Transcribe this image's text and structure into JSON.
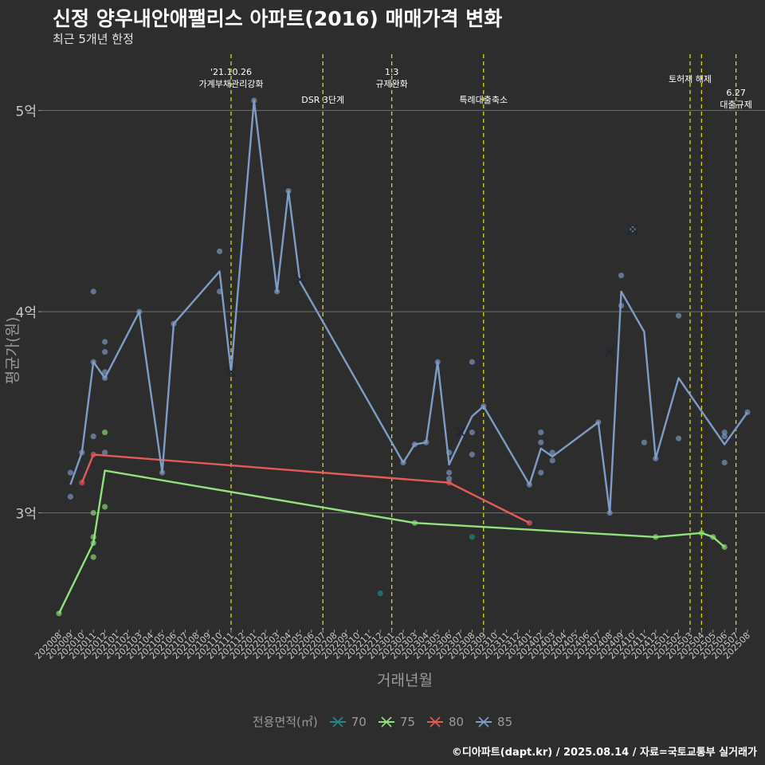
{
  "title": "신정 양우내안애팰리스 아파트(2016) 매매가격 변화",
  "subtitle": "최근 5개년 한정",
  "caption": "©디아파트(dapt.kr) / 2025.08.14 / 자료=국토교통부 실거래가",
  "legend": {
    "title": "전용면적(㎡)",
    "items": [
      {
        "label": "70",
        "color": "#1f8c8c"
      },
      {
        "label": "75",
        "color": "#90e27a"
      },
      {
        "label": "80",
        "color": "#e65a58"
      },
      {
        "label": "85",
        "color": "#7f9cc6"
      }
    ]
  },
  "chart_data": {
    "type": "line",
    "title": "신정 양우내안애팰리스 아파트(2016) 매매가격 변화",
    "subtitle": "최근 5개년 한정",
    "xlabel": "거래년월",
    "ylabel": "평균가(원)",
    "x_ticks": [
      "202008",
      "202009",
      "202010",
      "202011",
      "202012",
      "202101",
      "202102",
      "202103",
      "202104",
      "202105",
      "202106",
      "202107",
      "202108",
      "202109",
      "202110",
      "202111",
      "202112",
      "202201",
      "202202",
      "202203",
      "202204",
      "202205",
      "202206",
      "202207",
      "202208",
      "202209",
      "202210",
      "202211",
      "202212",
      "202301",
      "202302",
      "202303",
      "202304",
      "202305",
      "202306",
      "202307",
      "202308",
      "202309",
      "202310",
      "202311",
      "202312",
      "202401",
      "202402",
      "202403",
      "202404",
      "202405",
      "202406",
      "202407",
      "202408",
      "202409",
      "202410",
      "202411",
      "202412",
      "202501",
      "202502",
      "202503",
      "202504",
      "202505",
      "202506",
      "202507",
      "202508"
    ],
    "y_ticks": [
      {
        "value": 3.0,
        "label": "3억"
      },
      {
        "value": 4.0,
        "label": "4억"
      },
      {
        "value": 5.0,
        "label": "5억"
      }
    ],
    "ylim": [
      2.42,
      5.28
    ],
    "y_unit": "억",
    "grid": "horizontal",
    "legend_position": "bottom",
    "events": [
      {
        "x": "202111",
        "label": "'21.10.26\n가계부채관리강화",
        "label_row": 0
      },
      {
        "x": "202207",
        "label": "DSR 3단계",
        "label_row": 1
      },
      {
        "x": "202301",
        "label": "1.3\n규제완화",
        "label_row": 0
      },
      {
        "x": "202309",
        "label": "특례대출축소",
        "label_row": 1
      },
      {
        "x": "202503",
        "label": "토허제 해제",
        "label_row": 0
      },
      {
        "x": "202504",
        "label": "",
        "label_row": 0
      },
      {
        "x": "202507",
        "label": "6.27\n대출규제",
        "label_row": 1
      }
    ],
    "series": [
      {
        "name": "70",
        "color": "#1f8c8c",
        "line": [],
        "points": [
          [
            "202212",
            2.6
          ],
          [
            "202308",
            2.88
          ]
        ]
      },
      {
        "name": "75",
        "color": "#90e27a",
        "line": [
          [
            "202008",
            2.5
          ],
          [
            "202011",
            2.85
          ],
          [
            "202012",
            3.21
          ],
          [
            "202303",
            2.95
          ],
          [
            "202412",
            2.88
          ],
          [
            "202504",
            2.9
          ],
          [
            "202505",
            2.88
          ],
          [
            "202506",
            2.83
          ]
        ],
        "points": [
          [
            "202008",
            2.5
          ],
          [
            "202011",
            2.78
          ],
          [
            "202011",
            2.85
          ],
          [
            "202011",
            2.88
          ],
          [
            "202011",
            3.0
          ],
          [
            "202012",
            3.03
          ],
          [
            "202012",
            3.4
          ],
          [
            "202303",
            2.95
          ],
          [
            "202412",
            2.88
          ],
          [
            "202504",
            2.9
          ],
          [
            "202505",
            2.88
          ],
          [
            "202506",
            2.83
          ]
        ]
      },
      {
        "name": "80",
        "color": "#e65a58",
        "line": [
          [
            "202010",
            3.15
          ],
          [
            "202011",
            3.29
          ],
          [
            "202306",
            3.15
          ],
          [
            "202401",
            2.95
          ]
        ],
        "points": [
          [
            "202010",
            3.15
          ],
          [
            "202011",
            3.29
          ],
          [
            "202306",
            3.15
          ],
          [
            "202401",
            2.95
          ]
        ]
      },
      {
        "name": "85",
        "color": "#7f9cc6",
        "line": [
          [
            "202009",
            3.14
          ],
          [
            "202010",
            3.3
          ],
          [
            "202011",
            3.75
          ],
          [
            "202012",
            3.67
          ],
          [
            "202103",
            4.0
          ],
          [
            "202105",
            3.2
          ],
          [
            "202106",
            3.94
          ],
          [
            "202110",
            4.2
          ],
          [
            "202111",
            3.7
          ],
          [
            "202113",
            5.05
          ],
          [
            "202115",
            4.1
          ],
          [
            "202116",
            4.6
          ],
          [
            "202117",
            4.15
          ],
          [
            "202302",
            3.25
          ],
          [
            "202303",
            3.34
          ],
          [
            "202304",
            3.35
          ],
          [
            "202305",
            3.75
          ],
          [
            "202306",
            3.24
          ],
          [
            "202308",
            3.48
          ],
          [
            "202309",
            3.53
          ],
          [
            "202401",
            3.14
          ],
          [
            "202402",
            3.32
          ],
          [
            "202403",
            3.28
          ],
          [
            "202407",
            3.45
          ],
          [
            "202408",
            3.0
          ],
          [
            "202409",
            4.1
          ],
          [
            "202411",
            3.9
          ],
          [
            "202412",
            3.27
          ],
          [
            "202502",
            3.67
          ],
          [
            "202506",
            3.34
          ],
          [
            "202508",
            3.5
          ]
        ],
        "points": [
          [
            "202009",
            3.2
          ],
          [
            "202009",
            3.08
          ],
          [
            "202010",
            3.3
          ],
          [
            "202011",
            4.1
          ],
          [
            "202011",
            3.75
          ],
          [
            "202011",
            3.38
          ],
          [
            "202012",
            3.85
          ],
          [
            "202012",
            3.8
          ],
          [
            "202012",
            3.7
          ],
          [
            "202012",
            3.67
          ],
          [
            "202012",
            3.3
          ],
          [
            "202103",
            4.0
          ],
          [
            "202105",
            3.2
          ],
          [
            "202106",
            3.94
          ],
          [
            "202110",
            4.3
          ],
          [
            "202110",
            4.1
          ],
          [
            "202113",
            5.05
          ],
          [
            "202115",
            4.1
          ],
          [
            "202116",
            4.6
          ],
          [
            "202302",
            3.25
          ],
          [
            "202303",
            3.34
          ],
          [
            "202304",
            3.35
          ],
          [
            "202305",
            3.75
          ],
          [
            "202306",
            3.3
          ],
          [
            "202306",
            3.2
          ],
          [
            "202306",
            3.17
          ],
          [
            "202308",
            3.75
          ],
          [
            "202308",
            3.4
          ],
          [
            "202308",
            3.29
          ],
          [
            "202309",
            3.53
          ],
          [
            "202401",
            3.14
          ],
          [
            "202402",
            3.4
          ],
          [
            "202402",
            3.35
          ],
          [
            "202402",
            3.2
          ],
          [
            "202403",
            3.3
          ],
          [
            "202403",
            3.26
          ],
          [
            "202407",
            3.45
          ],
          [
            "202408",
            3.0
          ],
          [
            "202409",
            4.18
          ],
          [
            "202409",
            4.03
          ],
          [
            "202410",
            4.41
          ],
          [
            "202411",
            3.35
          ],
          [
            "202412",
            3.27
          ],
          [
            "202502",
            3.98
          ],
          [
            "202502",
            3.37
          ],
          [
            "202506",
            3.4
          ],
          [
            "202506",
            3.38
          ],
          [
            "202506",
            3.25
          ],
          [
            "202508",
            3.5
          ]
        ],
        "x_marks": [
          [
            "202111",
            3.7
          ],
          [
            "202117",
            4.16
          ],
          [
            "202307",
            3.4
          ],
          [
            "202408",
            3.8
          ],
          [
            "202410",
            4.41
          ]
        ]
      }
    ]
  }
}
